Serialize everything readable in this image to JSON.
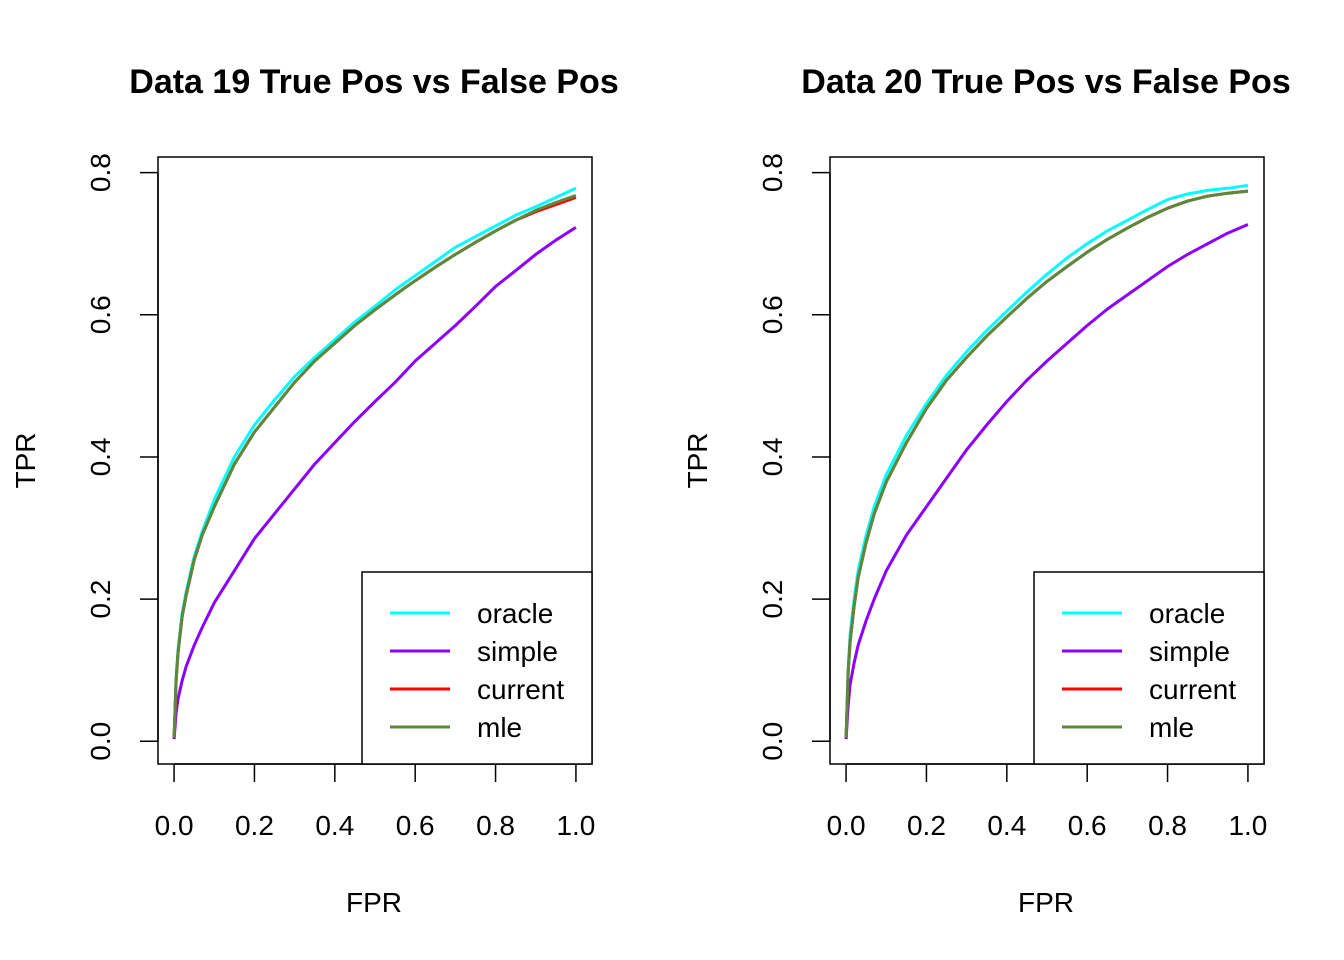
{
  "chart_data": [
    {
      "type": "line",
      "title": "Data 19 True Pos vs False Pos",
      "xlabel": "FPR",
      "ylabel": "TPR",
      "xlim": [
        0,
        1
      ],
      "ylim": [
        0,
        0.8
      ],
      "xticks": [
        "0.0",
        "0.2",
        "0.4",
        "0.6",
        "0.8",
        "1.0"
      ],
      "yticks": [
        "0.0",
        "0.2",
        "0.4",
        "0.6",
        "0.8"
      ],
      "legend_position": "bottom-right",
      "series": [
        {
          "name": "oracle",
          "color": "#00ffff",
          "x": [
            0,
            0.005,
            0.01,
            0.02,
            0.03,
            0.05,
            0.07,
            0.1,
            0.15,
            0.2,
            0.25,
            0.3,
            0.35,
            0.4,
            0.45,
            0.5,
            0.55,
            0.6,
            0.65,
            0.7,
            0.75,
            0.8,
            0.85,
            0.9,
            0.95,
            1.0
          ],
          "y": [
            0.005,
            0.09,
            0.13,
            0.18,
            0.21,
            0.26,
            0.295,
            0.34,
            0.4,
            0.445,
            0.48,
            0.513,
            0.54,
            0.565,
            0.59,
            0.612,
            0.635,
            0.655,
            0.675,
            0.695,
            0.71,
            0.725,
            0.74,
            0.752,
            0.765,
            0.778
          ]
        },
        {
          "name": "simple",
          "color": "#8b00ff",
          "x": [
            0,
            0.005,
            0.01,
            0.02,
            0.03,
            0.05,
            0.07,
            0.1,
            0.15,
            0.2,
            0.25,
            0.3,
            0.35,
            0.4,
            0.45,
            0.5,
            0.55,
            0.6,
            0.65,
            0.7,
            0.75,
            0.8,
            0.85,
            0.9,
            0.95,
            1.0
          ],
          "y": [
            0.003,
            0.04,
            0.06,
            0.085,
            0.105,
            0.135,
            0.16,
            0.195,
            0.24,
            0.285,
            0.32,
            0.355,
            0.39,
            0.42,
            0.45,
            0.478,
            0.505,
            0.535,
            0.56,
            0.585,
            0.612,
            0.64,
            0.662,
            0.685,
            0.705,
            0.723
          ]
        },
        {
          "name": "current",
          "color": "#ff0000",
          "x": [
            0,
            0.005,
            0.01,
            0.02,
            0.03,
            0.05,
            0.07,
            0.1,
            0.15,
            0.2,
            0.25,
            0.3,
            0.35,
            0.4,
            0.45,
            0.5,
            0.55,
            0.6,
            0.65,
            0.7,
            0.75,
            0.8,
            0.85,
            0.9,
            0.95,
            1.0
          ],
          "y": [
            0.005,
            0.085,
            0.125,
            0.175,
            0.205,
            0.255,
            0.29,
            0.33,
            0.39,
            0.435,
            0.47,
            0.505,
            0.535,
            0.56,
            0.585,
            0.607,
            0.628,
            0.648,
            0.667,
            0.685,
            0.702,
            0.718,
            0.733,
            0.745,
            0.755,
            0.765
          ]
        },
        {
          "name": "mle",
          "color": "#5a8a3c",
          "x": [
            0,
            0.005,
            0.01,
            0.02,
            0.03,
            0.05,
            0.07,
            0.1,
            0.15,
            0.2,
            0.25,
            0.3,
            0.35,
            0.4,
            0.45,
            0.5,
            0.55,
            0.6,
            0.65,
            0.7,
            0.75,
            0.8,
            0.85,
            0.9,
            0.95,
            1.0
          ],
          "y": [
            0.005,
            0.085,
            0.125,
            0.175,
            0.205,
            0.255,
            0.29,
            0.33,
            0.39,
            0.435,
            0.47,
            0.505,
            0.535,
            0.56,
            0.585,
            0.607,
            0.628,
            0.648,
            0.667,
            0.685,
            0.702,
            0.718,
            0.733,
            0.747,
            0.758,
            0.768
          ]
        }
      ]
    },
    {
      "type": "line",
      "title": "Data 20 True Pos vs False Pos",
      "xlabel": "FPR",
      "ylabel": "TPR",
      "xlim": [
        0,
        1
      ],
      "ylim": [
        0,
        0.8
      ],
      "xticks": [
        "0.0",
        "0.2",
        "0.4",
        "0.6",
        "0.8",
        "1.0"
      ],
      "yticks": [
        "0.0",
        "0.2",
        "0.4",
        "0.6",
        "0.8"
      ],
      "legend_position": "bottom-right",
      "series": [
        {
          "name": "oracle",
          "color": "#00ffff",
          "x": [
            0,
            0.005,
            0.01,
            0.02,
            0.03,
            0.05,
            0.07,
            0.1,
            0.15,
            0.2,
            0.25,
            0.3,
            0.35,
            0.4,
            0.45,
            0.5,
            0.55,
            0.6,
            0.65,
            0.7,
            0.75,
            0.8,
            0.85,
            0.9,
            0.95,
            1.0
          ],
          "y": [
            0.005,
            0.1,
            0.15,
            0.2,
            0.24,
            0.29,
            0.33,
            0.375,
            0.43,
            0.475,
            0.515,
            0.548,
            0.578,
            0.605,
            0.632,
            0.657,
            0.68,
            0.7,
            0.718,
            0.733,
            0.748,
            0.762,
            0.77,
            0.775,
            0.778,
            0.782
          ]
        },
        {
          "name": "simple",
          "color": "#8b00ff",
          "x": [
            0,
            0.005,
            0.01,
            0.02,
            0.03,
            0.05,
            0.07,
            0.1,
            0.15,
            0.2,
            0.25,
            0.3,
            0.35,
            0.4,
            0.45,
            0.5,
            0.55,
            0.6,
            0.65,
            0.7,
            0.75,
            0.8,
            0.85,
            0.9,
            0.95,
            1.0
          ],
          "y": [
            0.003,
            0.05,
            0.08,
            0.11,
            0.135,
            0.17,
            0.2,
            0.24,
            0.29,
            0.33,
            0.37,
            0.41,
            0.445,
            0.478,
            0.508,
            0.535,
            0.56,
            0.585,
            0.608,
            0.628,
            0.648,
            0.668,
            0.685,
            0.7,
            0.715,
            0.727
          ]
        },
        {
          "name": "current",
          "color": "#ff0000",
          "x": [
            0,
            0.005,
            0.01,
            0.02,
            0.03,
            0.05,
            0.07,
            0.1,
            0.15,
            0.2,
            0.25,
            0.3,
            0.35,
            0.4,
            0.45,
            0.5,
            0.55,
            0.6,
            0.65,
            0.7,
            0.75,
            0.8,
            0.85,
            0.9,
            0.95,
            1.0
          ],
          "y": [
            0.005,
            0.095,
            0.14,
            0.19,
            0.23,
            0.28,
            0.32,
            0.365,
            0.42,
            0.468,
            0.508,
            0.54,
            0.57,
            0.597,
            0.623,
            0.647,
            0.668,
            0.688,
            0.706,
            0.722,
            0.737,
            0.75,
            0.76,
            0.767,
            0.771,
            0.774
          ]
        },
        {
          "name": "mle",
          "color": "#5a8a3c",
          "x": [
            0,
            0.005,
            0.01,
            0.02,
            0.03,
            0.05,
            0.07,
            0.1,
            0.15,
            0.2,
            0.25,
            0.3,
            0.35,
            0.4,
            0.45,
            0.5,
            0.55,
            0.6,
            0.65,
            0.7,
            0.75,
            0.8,
            0.85,
            0.9,
            0.95,
            1.0
          ],
          "y": [
            0.005,
            0.095,
            0.14,
            0.19,
            0.23,
            0.28,
            0.32,
            0.365,
            0.42,
            0.468,
            0.508,
            0.54,
            0.57,
            0.597,
            0.623,
            0.647,
            0.668,
            0.688,
            0.706,
            0.722,
            0.737,
            0.75,
            0.76,
            0.767,
            0.771,
            0.774
          ]
        }
      ]
    }
  ]
}
